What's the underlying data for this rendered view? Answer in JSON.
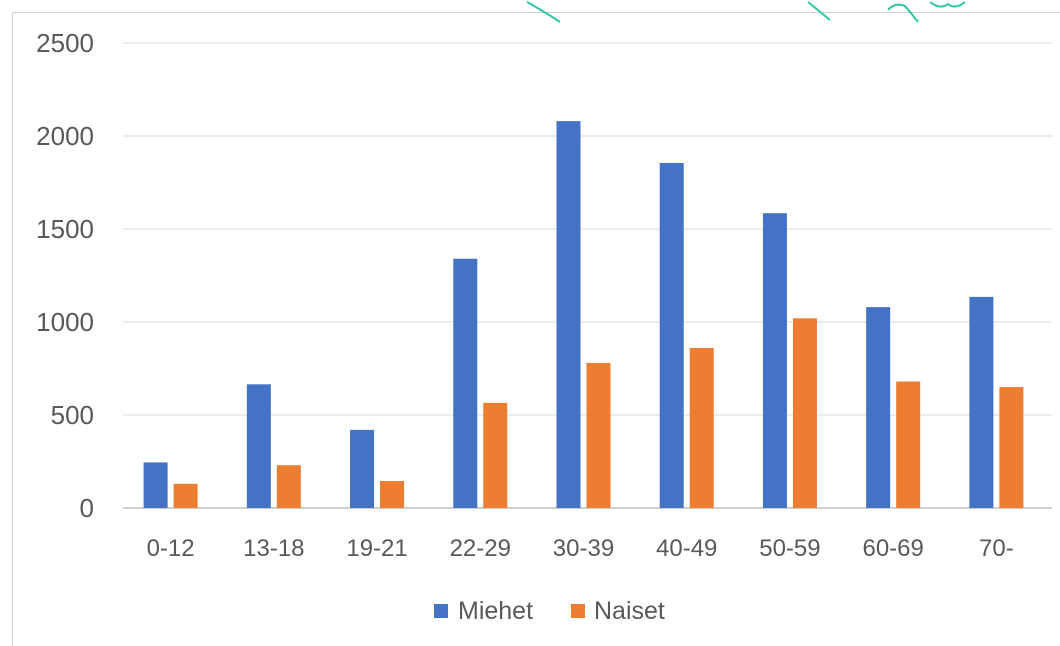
{
  "chart_data": {
    "type": "bar",
    "categories": [
      "0-12",
      "13-18",
      "19-21",
      "22-29",
      "30-39",
      "40-49",
      "50-59",
      "60-69",
      "70-"
    ],
    "series": [
      {
        "name": "Miehet",
        "color": "#4472C4",
        "values": [
          245,
          665,
          420,
          1340,
          2080,
          1855,
          1585,
          1080,
          1135
        ]
      },
      {
        "name": "Naiset",
        "color": "#ED7D31",
        "values": [
          130,
          230,
          145,
          565,
          780,
          860,
          1020,
          680,
          650
        ]
      }
    ],
    "y_ticks": [
      "0",
      "500",
      "1000",
      "1500",
      "2000",
      "2500"
    ],
    "ylim": [
      0,
      2500
    ],
    "grid": true,
    "legend_position": "bottom",
    "colors": {
      "grid": "#d9d9d9",
      "axis": "#bfbfbf",
      "text": "#595959"
    }
  }
}
